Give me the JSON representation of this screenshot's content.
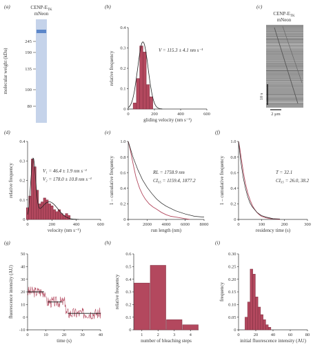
{
  "panel_labels": [
    "(a)",
    "(b)",
    "(c)",
    "(d)",
    "(e)",
    "(f)",
    "(g)",
    "(h)",
    "(i)"
  ],
  "gel": {
    "title_line1": "CENP-E",
    "title_sub": "TK",
    "title_line2": "mNeon",
    "ylabel": "molecular weight (kDa)",
    "markers": [
      "245",
      "190",
      "135",
      "100",
      "80"
    ],
    "band_color": "#5b86c9",
    "lane_color": "#c5d3ea"
  },
  "kymo": {
    "title_line1": "CENP-E",
    "title_sub": "TK",
    "title_line2": "mNeon",
    "time_scale": "10 s",
    "space_scale": "2 μm"
  },
  "colors": {
    "bar": "#b3485e",
    "bar_edge": "#7a2c3e",
    "fit": "#222222",
    "trace": "#b3485e"
  },
  "chart_data": [
    {
      "panel": "(b)",
      "type": "bar",
      "xlabel": "gliding velocity (nm s⁻¹)",
      "ylabel": "relative frequency",
      "xlim": [
        0,
        600
      ],
      "ylim": [
        0,
        0.4
      ],
      "xticks": [
        "0",
        "200",
        "400",
        "600"
      ],
      "yticks": [
        "0",
        "0.1",
        "0.2",
        "0.3",
        "0.4"
      ],
      "bin_width": 25,
      "bins": [
        50,
        75,
        100,
        125,
        150,
        175
      ],
      "values": [
        0.03,
        0.15,
        0.31,
        0.28,
        0.12,
        0.06
      ],
      "annotation": "V = 115.3 ± 4.1 nm s⁻¹"
    },
    {
      "panel": "(d)",
      "type": "bar",
      "xlabel": "velocity (nm s⁻¹)",
      "ylabel": "relative frequency",
      "xlim": [
        0,
        600
      ],
      "ylim": [
        0,
        0.4
      ],
      "xticks": [
        "0",
        "200",
        "400",
        "600"
      ],
      "yticks": [
        "0",
        "0.1",
        "0.2",
        "0.3",
        "0.4"
      ],
      "bin_width": 20,
      "bins": [
        0,
        20,
        40,
        60,
        80,
        100,
        120,
        140,
        160,
        180,
        200,
        220,
        240,
        260,
        280,
        300,
        320,
        340
      ],
      "values": [
        0.06,
        0.12,
        0.31,
        0.27,
        0.15,
        0.08,
        0.09,
        0.11,
        0.1,
        0.08,
        0.07,
        0.05,
        0.04,
        0.05,
        0.03,
        0.02,
        0.03,
        0.02
      ],
      "annotation_1": "V₁ = 46.4 ± 1.9 nm s⁻¹",
      "annotation_2": "V₂ = 178.0 ± 10.8 nm s⁻¹"
    },
    {
      "panel": "(e)",
      "type": "line",
      "xlabel": "run length (nm)",
      "ylabel": "1 – cumulative frequency",
      "xlim": [
        0,
        8000
      ],
      "ylim": [
        0,
        1
      ],
      "xticks": [
        "0",
        "2000",
        "4000",
        "6000",
        "8000"
      ],
      "yticks": [
        "0",
        "0.2",
        "0.4",
        "0.6",
        "0.8",
        "1.0"
      ],
      "series": [
        {
          "x": [
            0,
            200,
            400,
            600,
            800,
            1000,
            1200,
            1500,
            1800,
            2200,
            2600,
            3000,
            3500,
            4000,
            4500,
            5000,
            5500,
            6000,
            6500
          ],
          "values": [
            1.0,
            0.9,
            0.78,
            0.66,
            0.55,
            0.47,
            0.4,
            0.32,
            0.26,
            0.2,
            0.16,
            0.13,
            0.09,
            0.06,
            0.04,
            0.03,
            0.02,
            0.01,
            0.0
          ]
        },
        {
          "x": [
            0,
            500,
            1000,
            1500,
            2000,
            2500,
            3000,
            3500,
            4000,
            5000,
            6000,
            7000,
            8000
          ],
          "values": [
            1.0,
            0.8,
            0.64,
            0.51,
            0.41,
            0.33,
            0.26,
            0.21,
            0.17,
            0.11,
            0.07,
            0.04,
            0.03
          ]
        }
      ],
      "annotation_1": "RL = 1758.9 nm",
      "annotation_2": "CI₉₅ = 1159.4, 1877.2"
    },
    {
      "panel": "(f)",
      "type": "line",
      "xlabel": "residency time (s)",
      "ylabel": "1 – cumulative frequency",
      "xlim": [
        0,
        300
      ],
      "ylim": [
        0,
        1
      ],
      "xticks": [
        "0",
        "100",
        "200",
        "300"
      ],
      "yticks": [
        "0",
        "0.2",
        "0.4",
        "0.6",
        "0.8",
        "1.0"
      ],
      "series": [
        {
          "x": [
            0,
            5,
            10,
            15,
            20,
            25,
            30,
            40,
            50,
            60,
            70,
            80,
            90,
            100,
            120,
            140,
            160,
            180
          ],
          "values": [
            1.0,
            0.92,
            0.82,
            0.72,
            0.62,
            0.54,
            0.46,
            0.34,
            0.25,
            0.18,
            0.13,
            0.09,
            0.06,
            0.04,
            0.02,
            0.01,
            0.005,
            0.0
          ]
        },
        {
          "x": [
            0,
            10,
            20,
            30,
            40,
            50,
            60,
            80,
            100,
            120,
            150,
            180
          ],
          "values": [
            1.0,
            0.74,
            0.54,
            0.4,
            0.29,
            0.21,
            0.16,
            0.09,
            0.05,
            0.03,
            0.01,
            0.005
          ]
        }
      ],
      "annotation_1": "T = 32.1",
      "annotation_2": "CI₉₅ = 26.0, 38.2"
    },
    {
      "panel": "(g)",
      "type": "line",
      "xlabel": "time (s)",
      "ylabel": "fluorescence intensity (AU)",
      "xlim": [
        0,
        40
      ],
      "ylim": [
        -10,
        50
      ],
      "xticks": [
        "0",
        "10",
        "20",
        "30",
        "40"
      ],
      "yticks": [
        "-10",
        "0",
        "10",
        "20",
        "30",
        "40",
        "50"
      ],
      "steps": [
        {
          "x_start": 0,
          "x_end": 9,
          "level": 20
        },
        {
          "x_start": 11,
          "x_end": 19,
          "level": 12
        },
        {
          "x_start": 22,
          "x_end": 40,
          "level": 3
        }
      ]
    },
    {
      "panel": "(h)",
      "type": "bar",
      "xlabel": "number of bleaching steps",
      "ylabel": "relative frequency",
      "xlim": [
        0.5,
        4.5
      ],
      "ylim": [
        0,
        0.6
      ],
      "xticks": [
        "1",
        "2",
        "3",
        "4"
      ],
      "yticks": [
        "0",
        "0.1",
        "0.2",
        "0.3",
        "0.4",
        "0.5",
        "0.6"
      ],
      "categories": [
        1,
        2,
        3,
        4
      ],
      "values": [
        0.37,
        0.51,
        0.08,
        0.04
      ]
    },
    {
      "panel": "(i)",
      "type": "bar",
      "xlabel": "initial fluorescence intensity (AU)",
      "ylabel": "frequency",
      "xlim": [
        0,
        80
      ],
      "ylim": [
        0,
        0.3
      ],
      "xticks": [
        "0",
        "20",
        "40",
        "60",
        "80"
      ],
      "yticks": [
        "0",
        "0.05",
        "0.10",
        "0.15",
        "0.20",
        "0.25",
        "0.30"
      ],
      "bin_width": 3,
      "bins": [
        9,
        12,
        15,
        18,
        21,
        24,
        27,
        30,
        33,
        36
      ],
      "values": [
        0.05,
        0.11,
        0.24,
        0.22,
        0.13,
        0.09,
        0.06,
        0.04,
        0.02,
        0.01
      ]
    }
  ]
}
